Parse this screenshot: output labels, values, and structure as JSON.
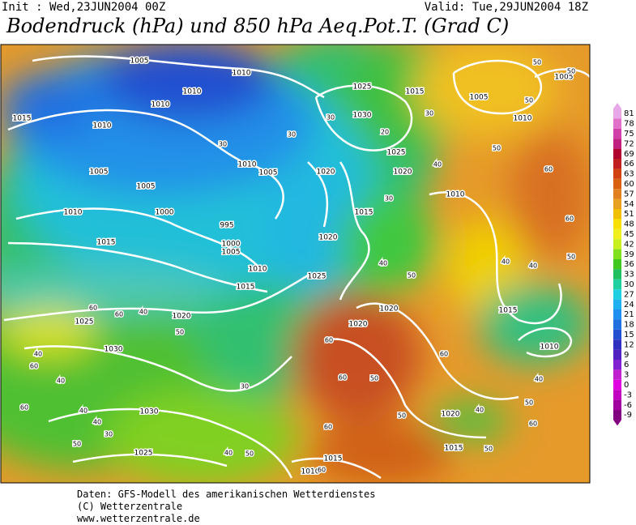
{
  "header": {
    "init": "Init : Wed,23JUN2004 00Z",
    "valid": "Valid: Tue,29JUN2004 18Z",
    "title": "Bodendruck (hPa) und 850 hPa Aeq.Pot.T. (Grad C)"
  },
  "map": {
    "isobar_labels": [
      "1005",
      "1010",
      "1010",
      "1010",
      "1015",
      "1010",
      "1005",
      "1005",
      "1000",
      "995",
      "1000",
      "1005",
      "1010",
      "1015",
      "1010",
      "1015",
      "1010",
      "1005",
      "1020",
      "1025",
      "1030",
      "1015",
      "1005",
      "1025",
      "1020",
      "1015",
      "1020",
      "1025",
      "1010",
      "1010",
      "1005",
      "1020",
      "1020",
      "1015",
      "1010",
      "1020",
      "1025",
      "1030",
      "1030",
      "1025",
      "1020",
      "1015",
      "1015",
      "1010"
    ],
    "temperature_labels": [
      "30",
      "30",
      "30",
      "20",
      "30",
      "40",
      "50",
      "50",
      "50",
      "60",
      "50",
      "60",
      "40",
      "40",
      "50",
      "30",
      "40",
      "50",
      "60",
      "60",
      "40",
      "50",
      "40",
      "60",
      "40",
      "30",
      "50",
      "60",
      "60",
      "60",
      "40",
      "50",
      "40",
      "50",
      "60",
      "40",
      "40",
      "30",
      "50",
      "60",
      "50",
      "40",
      "60",
      "50",
      "60"
    ]
  },
  "colorbar": {
    "labels": [
      81,
      78,
      75,
      72,
      69,
      66,
      63,
      60,
      57,
      54,
      51,
      48,
      45,
      42,
      39,
      36,
      33,
      30,
      27,
      24,
      21,
      18,
      15,
      12,
      9,
      6,
      3,
      0,
      -3,
      -6,
      -9
    ]
  },
  "footer": {
    "source": "Daten: GFS-Modell des amerikanischen Wetterdienstes",
    "copyright": "(C) Wetterzentrale",
    "url": "www.wetterzentrale.de"
  }
}
